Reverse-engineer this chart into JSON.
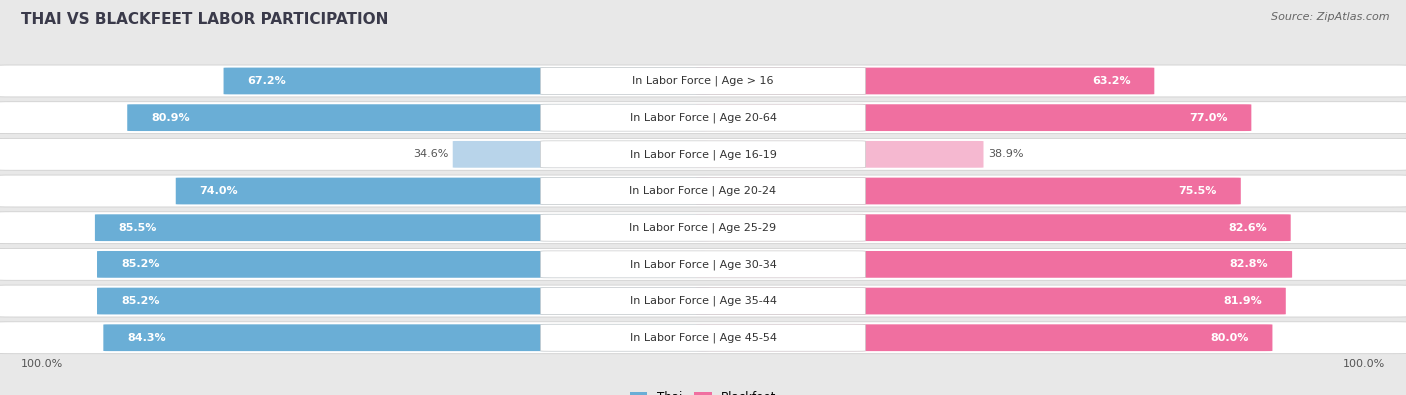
{
  "title": "THAI VS BLACKFEET LABOR PARTICIPATION",
  "source": "Source: ZipAtlas.com",
  "categories": [
    "In Labor Force | Age > 16",
    "In Labor Force | Age 20-64",
    "In Labor Force | Age 16-19",
    "In Labor Force | Age 20-24",
    "In Labor Force | Age 25-29",
    "In Labor Force | Age 30-34",
    "In Labor Force | Age 35-44",
    "In Labor Force | Age 45-54"
  ],
  "thai_values": [
    67.2,
    80.9,
    34.6,
    74.0,
    85.5,
    85.2,
    85.2,
    84.3
  ],
  "blackfeet_values": [
    63.2,
    77.0,
    38.9,
    75.5,
    82.6,
    82.8,
    81.9,
    80.0
  ],
  "thai_color": "#6aaed6",
  "thai_color_light": "#b8d4ea",
  "blackfeet_color": "#f06fa0",
  "blackfeet_color_light": "#f5b8d0",
  "background_color": "#e8e8e8",
  "row_bg_color": "#f5f5f5",
  "max_value": 100.0,
  "title_fontsize": 11,
  "source_fontsize": 8,
  "cat_fontsize": 8,
  "value_fontsize": 8
}
